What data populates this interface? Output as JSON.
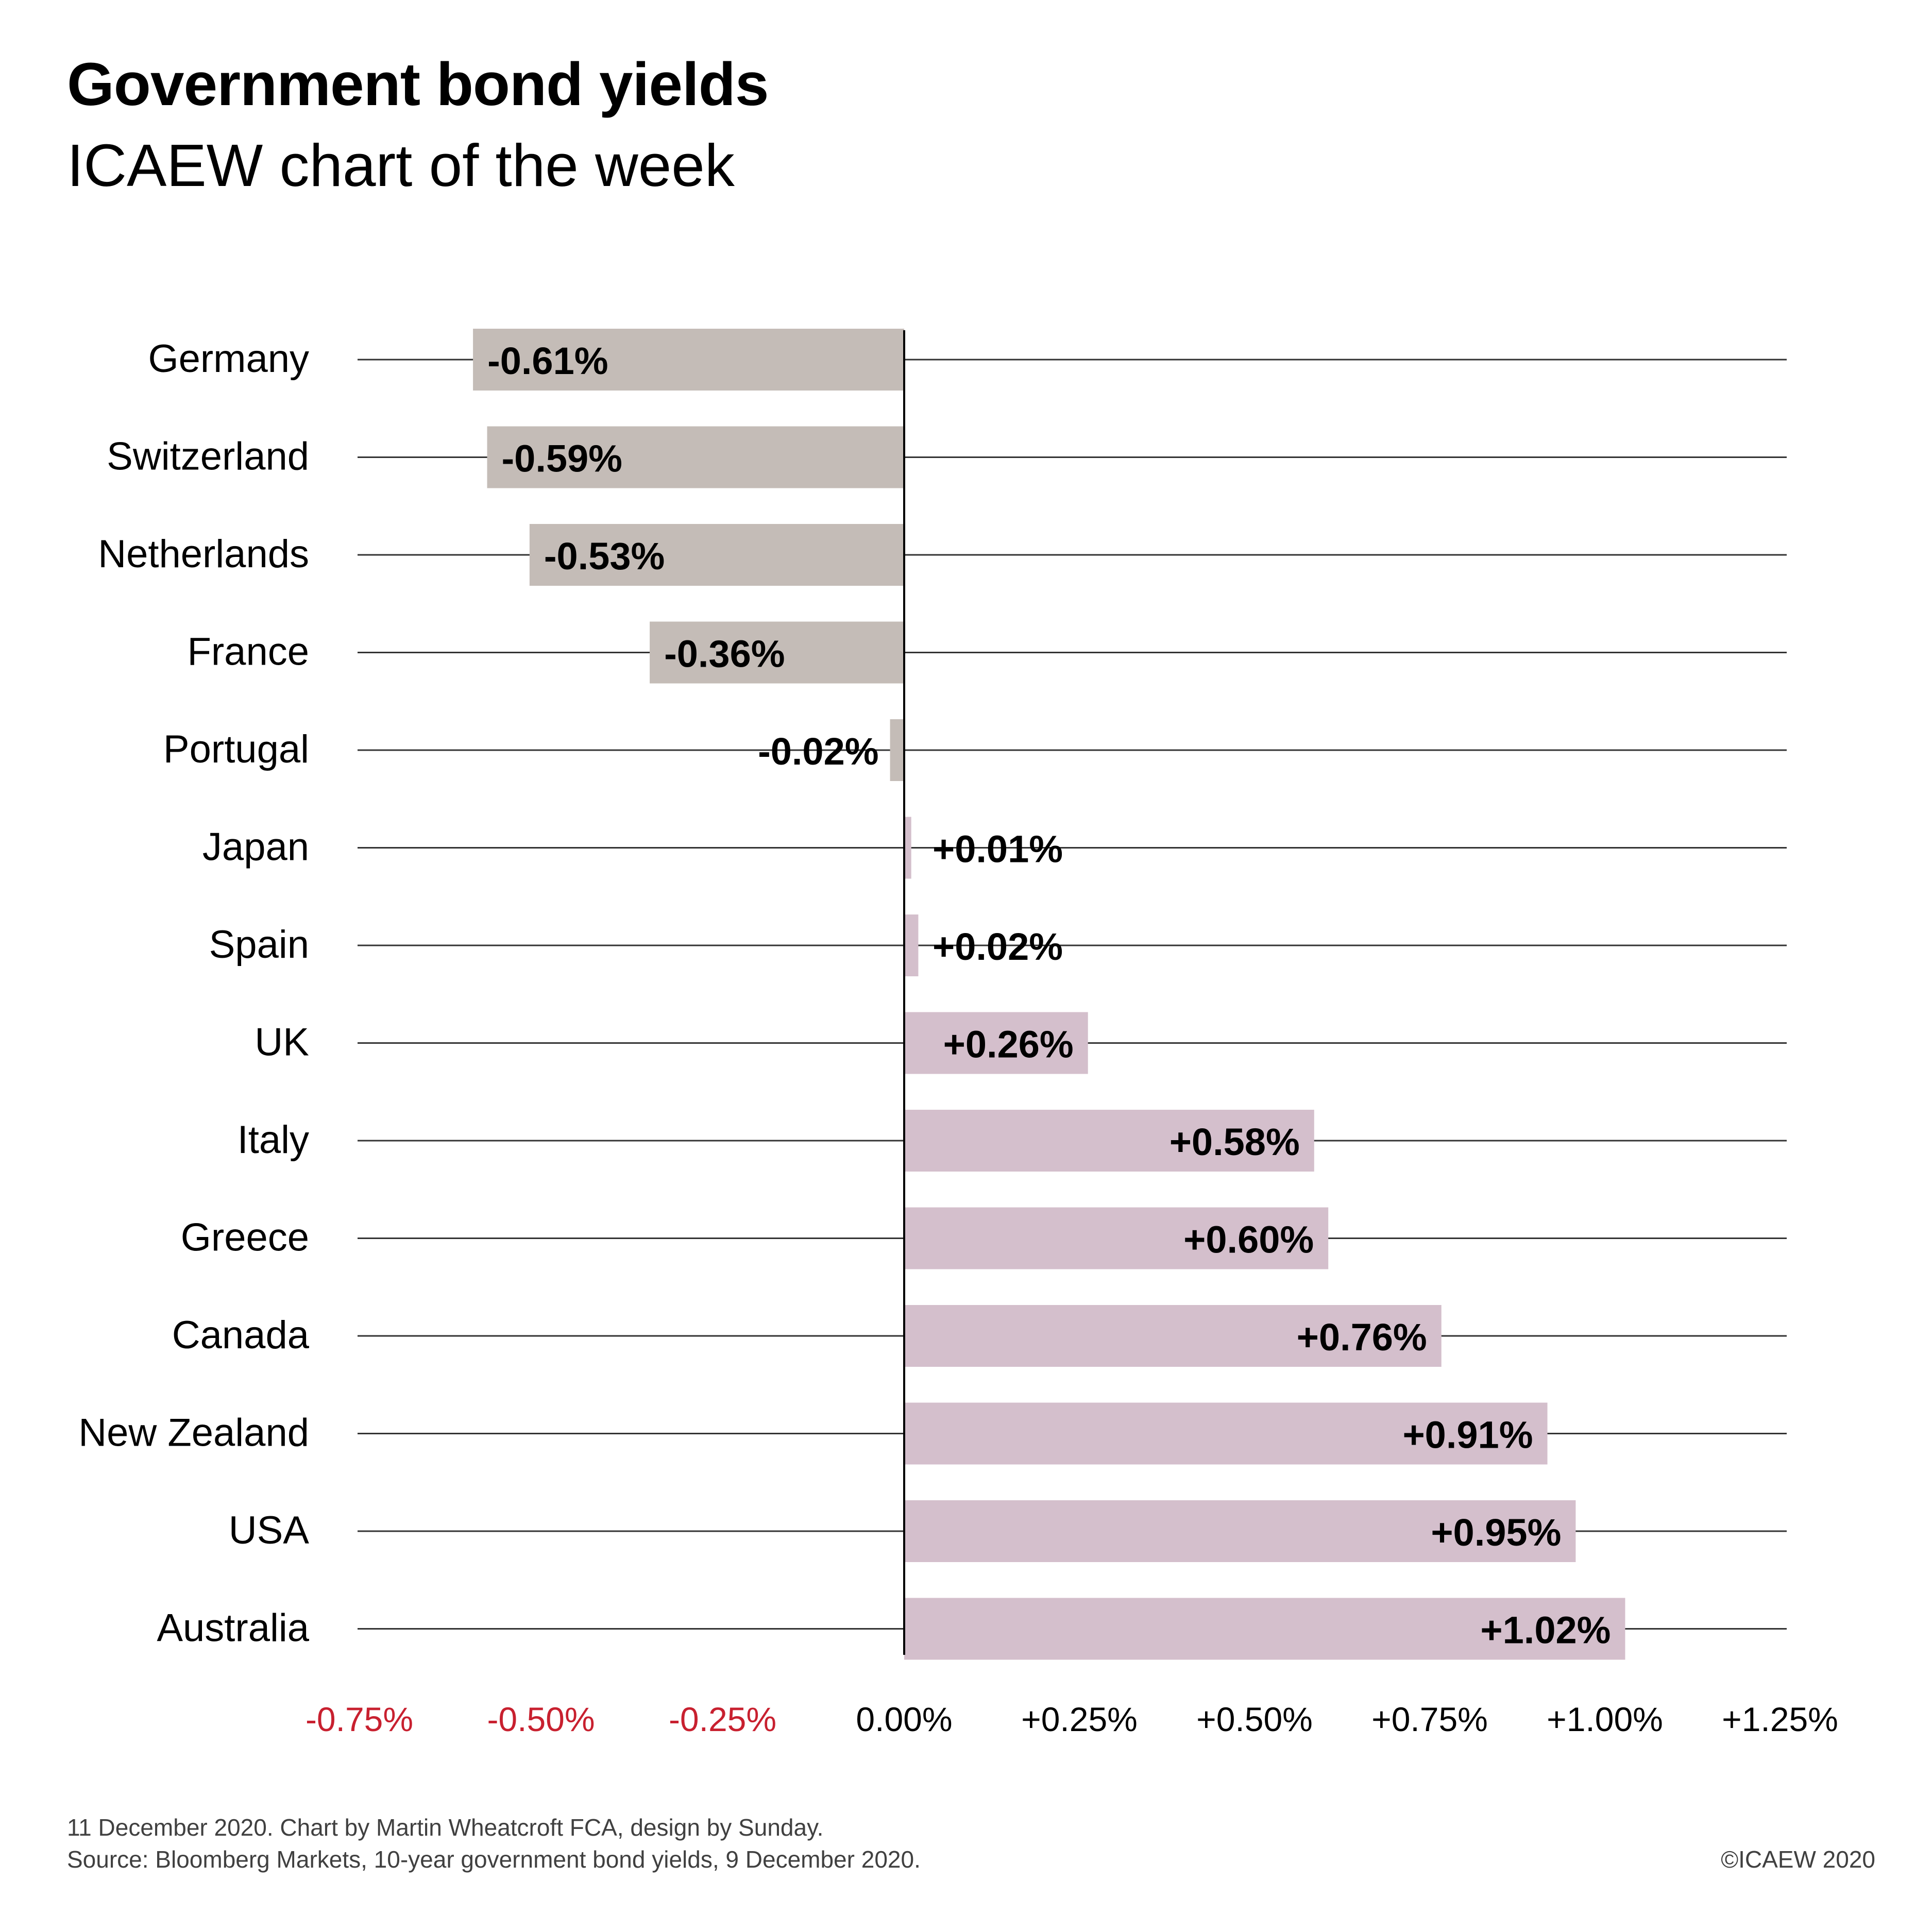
{
  "header": {
    "title": "Government bond yields",
    "subtitle": "ICAEW chart of the week"
  },
  "footer": {
    "line1": "11 December 2020.   Chart by Martin Wheatcroft FCA, design by Sunday.",
    "line2": "Source: Bloomberg Markets, 10-year government bond yields, 9 December 2020.",
    "copyright": "©ICAEW 2020"
  },
  "colors": {
    "negative_bar": "#c4bcb7",
    "positive_bar": "#d4bfcc",
    "negative_tick": "#c8202f",
    "positive_tick": "#000000",
    "gridline": "#333333"
  },
  "chart_data": {
    "type": "bar",
    "orientation": "horizontal",
    "title": "Government bond yields",
    "subtitle": "ICAEW chart of the week",
    "xlabel": "",
    "ylabel": "",
    "categories": [
      "Germany",
      "Switzerland",
      "Netherlands",
      "France",
      "Portugal",
      "Japan",
      "Spain",
      "UK",
      "Italy",
      "Greece",
      "Canada",
      "New Zealand",
      "USA",
      "Australia"
    ],
    "values": [
      -0.61,
      -0.59,
      -0.53,
      -0.36,
      -0.02,
      0.01,
      0.02,
      0.26,
      0.58,
      0.6,
      0.76,
      0.91,
      0.95,
      1.02
    ],
    "data_labels": [
      "-0.61%",
      "-0.59%",
      "-0.53%",
      "-0.36%",
      "-0.02%",
      "+0.01%",
      "+0.02%",
      "+0.26%",
      "+0.58%",
      "+0.60%",
      "+0.76%",
      "+0.91%",
      "+0.95%",
      "+1.02%"
    ],
    "xlim": [
      -0.75,
      1.25
    ],
    "x_ticks": [
      -0.75,
      -0.5,
      -0.25,
      0,
      0.25,
      0.5,
      0.75,
      1.0,
      1.25
    ],
    "x_tick_labels": [
      "-0.75%",
      "-0.50%",
      "-0.25%",
      "0.00%",
      "+0.25%",
      "+0.50%",
      "+0.75%",
      "+1.00%",
      "+1.25%"
    ],
    "grid": true,
    "legend": "none",
    "units": "%"
  }
}
